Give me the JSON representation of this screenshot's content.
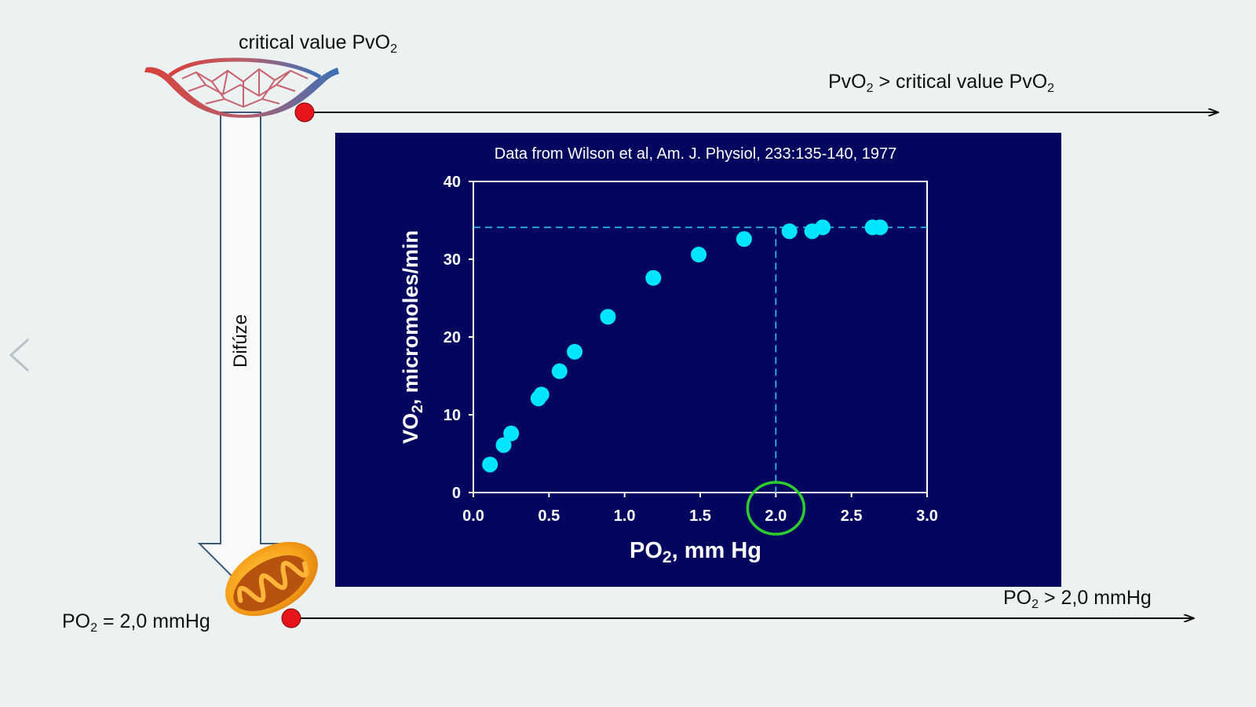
{
  "labels": {
    "critical_top_prefix": "critical value PvO",
    "critical_top_sub": "2",
    "right_top_pvo": "PvO",
    "right_top_sub1": "2",
    "right_top_mid": " >  critical value PvO",
    "right_top_sub2": "2",
    "diffusion": "Difúze",
    "bottom_left_prefix": "PO",
    "bottom_left_sub": "2",
    "bottom_left_suffix": " = 2,0 mmHg",
    "bottom_right_prefix": "PO",
    "bottom_right_sub": "2",
    "bottom_right_suffix": " > 2,0 mmHg"
  },
  "icons": {
    "capillary": "capillary-bed-icon",
    "mitochondrion": "mitochondrion-icon",
    "prev": "chevron-left-icon"
  },
  "colors": {
    "background": "#ecf1f2",
    "panel": "#03065e",
    "points": "#00e5ff",
    "red_marker": "#e8141b",
    "highlight_circle": "#2ecc2e"
  },
  "chart_data": {
    "type": "scatter",
    "title": "Data from Wilson et al, Am. J. Physiol, 233:135-140, 1977",
    "xlabel": "PO",
    "xlabel_sub": "2",
    "xlabel_suffix": ",  mm Hg",
    "ylabel": "VO",
    "ylabel_sub": "2",
    "ylabel_suffix": ",  micromoles/min",
    "xlim": [
      0,
      3
    ],
    "ylim": [
      0,
      40
    ],
    "x_ticks": [
      "0.0",
      "0.5",
      "1.0",
      "1.5",
      "2.0",
      "2.5",
      "3.0"
    ],
    "y_ticks": [
      "0",
      "10",
      "20",
      "30",
      "40"
    ],
    "points": [
      {
        "x": 0.11,
        "y": 3.6
      },
      {
        "x": 0.2,
        "y": 6.1
      },
      {
        "x": 0.25,
        "y": 7.6
      },
      {
        "x": 0.43,
        "y": 12.1
      },
      {
        "x": 0.45,
        "y": 12.6
      },
      {
        "x": 0.57,
        "y": 15.6
      },
      {
        "x": 0.67,
        "y": 18.1
      },
      {
        "x": 0.89,
        "y": 22.6
      },
      {
        "x": 1.19,
        "y": 27.6
      },
      {
        "x": 1.49,
        "y": 30.6
      },
      {
        "x": 1.79,
        "y": 32.6
      },
      {
        "x": 2.09,
        "y": 33.6
      },
      {
        "x": 2.24,
        "y": 33.6
      },
      {
        "x": 2.31,
        "y": 34.1
      },
      {
        "x": 2.64,
        "y": 34.1
      },
      {
        "x": 2.69,
        "y": 34.1
      }
    ],
    "reference_lines": {
      "plateau_y": 34.1,
      "critical_x": 2.0
    },
    "highlighted_tick": "2.0"
  }
}
